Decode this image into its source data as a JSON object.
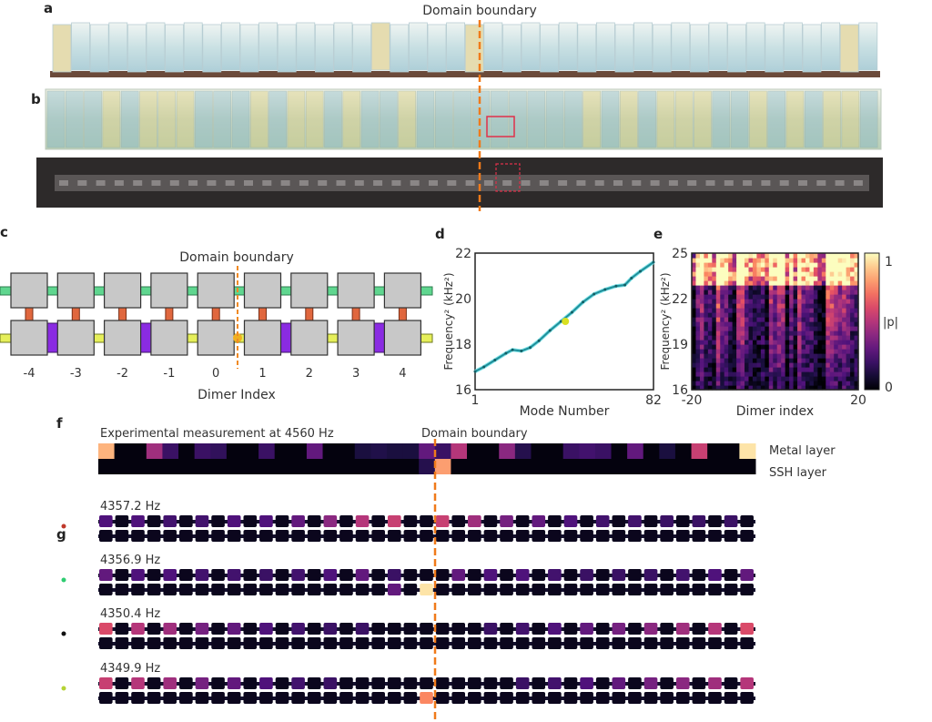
{
  "panel_labels": {
    "a": "a",
    "b": "b",
    "c": "c",
    "d": "d",
    "e": "e",
    "f": "f",
    "g": "g"
  },
  "panel_a": {
    "title": "Domain boundary"
  },
  "panel_c": {
    "title": "Domain boundary",
    "xlabel": "Dimer Index",
    "indices": [
      "-4",
      "-3",
      "-2",
      "-1",
      "0",
      "1",
      "2",
      "3",
      "4"
    ],
    "colors": {
      "intra_top": "#5fd68f",
      "inter_vertical": "#e0673e",
      "weak_bottom": "#e6ef5a",
      "strong_bottom": "#8a2be2",
      "boundary": "#f08a24",
      "cell": "#c8c8c8"
    }
  },
  "chart_data": [
    {
      "type": "line",
      "panel": "d",
      "xlabel": "Mode Number",
      "ylabel": "Frequency² (kHz²)",
      "xlim": [
        1,
        82
      ],
      "ylim": [
        16,
        22
      ],
      "xticks": [
        "1",
        "82"
      ],
      "yticks": [
        "16",
        "18",
        "20",
        "22"
      ],
      "x": [
        1,
        5,
        10,
        15,
        18,
        22,
        26,
        30,
        35,
        40,
        45,
        50,
        55,
        60,
        65,
        69,
        72,
        76,
        82
      ],
      "y": [
        16.8,
        17.0,
        17.3,
        17.6,
        17.75,
        17.7,
        17.85,
        18.15,
        18.6,
        19.0,
        19.4,
        19.85,
        20.2,
        20.4,
        20.55,
        20.6,
        20.9,
        21.2,
        21.6
      ],
      "highlight": {
        "x": 42,
        "y": 19.0,
        "color": "#d9e021"
      },
      "line_color": "#1f8f9a"
    },
    {
      "type": "heatmap",
      "panel": "e",
      "xlabel": "Dimer index",
      "ylabel": "Frequency² (kHz²)",
      "xlim": [
        -20,
        20
      ],
      "ylim": [
        16,
        25
      ],
      "xticks": [
        "-20",
        "20"
      ],
      "yticks": [
        "16",
        "19",
        "22",
        "25"
      ],
      "colorbar": {
        "label": "|p|",
        "ticks": [
          "0",
          "1"
        ],
        "range": [
          0,
          1
        ],
        "colormap": "magma"
      }
    }
  ],
  "panel_f": {
    "title": "Experimental measurement at 4560 Hz",
    "boundary_label": "Domain boundary",
    "row_labels": [
      "Metal layer",
      "SSH layer"
    ],
    "top": [
      [
        0,
        0.85
      ],
      [
        3,
        0.45
      ],
      [
        4,
        0.2
      ],
      [
        6,
        0.2
      ],
      [
        7,
        0.18
      ],
      [
        10,
        0.2
      ],
      [
        13,
        0.3
      ],
      [
        16,
        0.12
      ],
      [
        17,
        0.14
      ],
      [
        18,
        0.12
      ],
      [
        19,
        0.12
      ],
      [
        20,
        0.3
      ],
      [
        21,
        0.2
      ],
      [
        22,
        0.5
      ],
      [
        25,
        0.4
      ],
      [
        26,
        0.15
      ],
      [
        29,
        0.2
      ],
      [
        30,
        0.22
      ],
      [
        31,
        0.2
      ],
      [
        33,
        0.3
      ],
      [
        35,
        0.12
      ],
      [
        37,
        0.55
      ],
      [
        40,
        0.95
      ]
    ],
    "bottom": [
      [
        20,
        0.15
      ],
      [
        21,
        0.8
      ]
    ]
  },
  "panel_g": {
    "modes": [
      {
        "label": "4357.2 Hz",
        "dot": "#c0392b",
        "top": [
          [
            0,
            0.25
          ],
          [
            2,
            0.25
          ],
          [
            4,
            0.22
          ],
          [
            6,
            0.22
          ],
          [
            8,
            0.25
          ],
          [
            10,
            0.25
          ],
          [
            12,
            0.3
          ],
          [
            14,
            0.4
          ],
          [
            16,
            0.5
          ],
          [
            18,
            0.55
          ],
          [
            21,
            0.55
          ],
          [
            23,
            0.45
          ],
          [
            25,
            0.35
          ],
          [
            27,
            0.3
          ],
          [
            29,
            0.25
          ],
          [
            31,
            0.22
          ],
          [
            33,
            0.22
          ],
          [
            35,
            0.2
          ],
          [
            37,
            0.2
          ],
          [
            39,
            0.2
          ]
        ],
        "bottom": []
      },
      {
        "label": "4356.9 Hz",
        "dot": "#2ecc71",
        "top": [
          [
            0,
            0.3
          ],
          [
            2,
            0.25
          ],
          [
            4,
            0.25
          ],
          [
            6,
            0.22
          ],
          [
            8,
            0.22
          ],
          [
            10,
            0.2
          ],
          [
            12,
            0.22
          ],
          [
            14,
            0.25
          ],
          [
            16,
            0.3
          ],
          [
            18,
            0.2
          ],
          [
            22,
            0.3
          ],
          [
            24,
            0.25
          ],
          [
            26,
            0.25
          ],
          [
            28,
            0.22
          ],
          [
            30,
            0.2
          ],
          [
            32,
            0.2
          ],
          [
            34,
            0.2
          ],
          [
            36,
            0.22
          ],
          [
            38,
            0.25
          ],
          [
            40,
            0.3
          ]
        ],
        "bottom": [
          [
            18,
            0.3
          ],
          [
            20,
            0.95
          ]
        ]
      },
      {
        "label": "4350.4 Hz",
        "dot": "#111111",
        "top": [
          [
            0,
            0.6
          ],
          [
            2,
            0.5
          ],
          [
            4,
            0.45
          ],
          [
            6,
            0.35
          ],
          [
            8,
            0.3
          ],
          [
            10,
            0.25
          ],
          [
            12,
            0.22
          ],
          [
            14,
            0.2
          ],
          [
            16,
            0.2
          ],
          [
            24,
            0.2
          ],
          [
            26,
            0.22
          ],
          [
            28,
            0.25
          ],
          [
            30,
            0.3
          ],
          [
            32,
            0.35
          ],
          [
            34,
            0.4
          ],
          [
            36,
            0.45
          ],
          [
            38,
            0.5
          ],
          [
            40,
            0.6
          ]
        ],
        "bottom": []
      },
      {
        "label": "4349.9 Hz",
        "dot": "#b5d334",
        "top": [
          [
            0,
            0.55
          ],
          [
            2,
            0.5
          ],
          [
            4,
            0.45
          ],
          [
            6,
            0.35
          ],
          [
            8,
            0.3
          ],
          [
            10,
            0.25
          ],
          [
            12,
            0.22
          ],
          [
            14,
            0.2
          ],
          [
            26,
            0.2
          ],
          [
            28,
            0.22
          ],
          [
            30,
            0.25
          ],
          [
            32,
            0.3
          ],
          [
            34,
            0.35
          ],
          [
            36,
            0.4
          ],
          [
            38,
            0.45
          ],
          [
            40,
            0.5
          ]
        ],
        "bottom": [
          [
            20,
            0.75
          ]
        ]
      }
    ]
  },
  "boundary_color": "#f07a1a"
}
